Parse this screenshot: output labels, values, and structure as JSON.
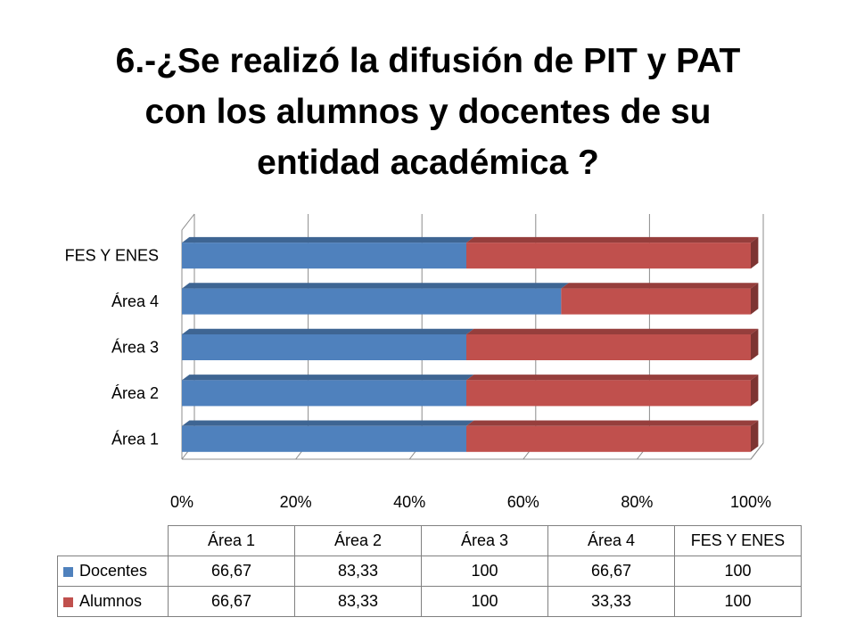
{
  "title": "6.-¿Se realizó la difusión de PIT y PAT\ncon los alumnos y docentes de su\nentidad académica ?",
  "colors": {
    "Docentes": "#4F81BD",
    "Alumnos": "#C0504D",
    "grid": "#8C8C8C",
    "axis": "#8C8C8C"
  },
  "chart_data": {
    "type": "bar",
    "orientation": "horizontal",
    "stacked": "100%",
    "style": "3d",
    "categories": [
      "Área 1",
      "Área 2",
      "Área 3",
      "Área 4",
      "FES Y ENES"
    ],
    "series": [
      {
        "name": "Docentes",
        "values": [
          66.67,
          83.33,
          100,
          66.67,
          100
        ]
      },
      {
        "name": "Alumnos",
        "values": [
          66.67,
          83.33,
          100,
          33.33,
          100
        ]
      }
    ],
    "x_ticks": [
      "0%",
      "20%",
      "40%",
      "60%",
      "80%",
      "100%"
    ],
    "xlim": [
      0,
      100
    ],
    "grid": true,
    "legend": "data-table",
    "data_table": {
      "columns": [
        "Área 1",
        "Área 2",
        "Área 3",
        "Área 4",
        "FES Y ENES"
      ],
      "rows": [
        {
          "label": "Docentes",
          "values": [
            "66,67",
            "83,33",
            "100",
            "66,67",
            "100"
          ]
        },
        {
          "label": "Alumnos",
          "values": [
            "66,67",
            "83,33",
            "100",
            "33,33",
            "100"
          ]
        }
      ]
    }
  }
}
